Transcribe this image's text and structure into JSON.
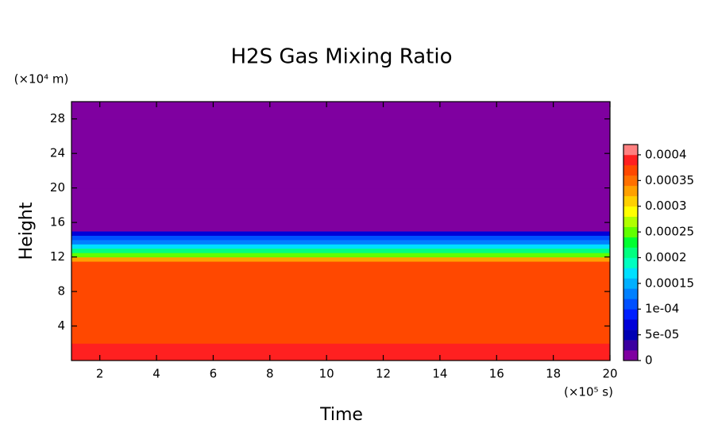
{
  "chart_data": {
    "type": "contour",
    "title": "H2S Gas Mixing Ratio",
    "x_label": "Time",
    "y_label": "Height",
    "x_unit": "(×10⁵ s)",
    "y_unit": "(×10⁴ m)",
    "xlim": [
      1,
      20
    ],
    "ylim": [
      0,
      30
    ],
    "xticks": [
      2,
      4,
      6,
      8,
      10,
      12,
      14,
      16,
      18,
      20
    ],
    "yticks": [
      4,
      8,
      12,
      16,
      20,
      24,
      28
    ],
    "y": [
      0,
      2,
      4,
      6,
      8,
      10,
      11,
      11.5,
      12,
      12.5,
      13,
      13.5,
      14,
      14.5,
      15,
      16,
      20,
      24,
      28
    ],
    "values": [
      0.00038,
      0.00037,
      0.00037,
      0.00037,
      0.00037,
      0.00037,
      0.00036,
      0.00033,
      0.00025,
      0.0002,
      0.00016,
      0.00013,
      0.0001,
      6e-05,
      0,
      0,
      0,
      0,
      0
    ],
    "clim": [
      0,
      0.00042
    ],
    "colors": [
      "#7f00a0",
      "#3c00a0",
      "#0000b4",
      "#0000d8",
      "#0020ff",
      "#0050ff",
      "#0080ff",
      "#00b0ff",
      "#00e0ff",
      "#00ffc0",
      "#00ff80",
      "#00ff30",
      "#60ff00",
      "#b0ff00",
      "#ffff00",
      "#ffd000",
      "#ffa000",
      "#ff7000",
      "#ff4800",
      "#ff2020",
      "#ff8080"
    ],
    "cticks": [
      0,
      {
        "value": 5e-05,
        "label": "5e-05"
      },
      {
        "value": 0.0001,
        "label": "1e-04"
      },
      0.00015,
      0.0002,
      0.00025,
      0.0003,
      0.00035,
      0.0004
    ]
  }
}
